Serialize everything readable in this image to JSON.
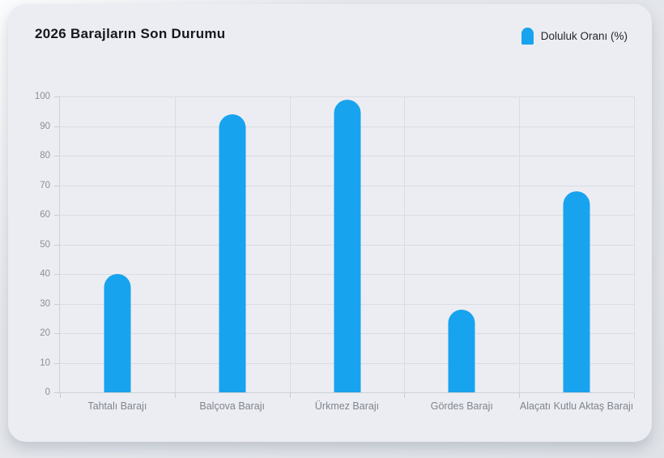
{
  "page": {
    "title": "2026 Barajların Son Durumu"
  },
  "legend": {
    "label": "Doluluk Oranı (%)",
    "color": "#18a3ee"
  },
  "chart_data": {
    "type": "bar",
    "title": "2026 Barajların Son Durumu",
    "categories": [
      "Tahtalı Barajı",
      "Balçova Barajı",
      "Ürkmez Barajı",
      "Gördes Barajı",
      "Alaçatı Kutlu Aktaş Barajı"
    ],
    "series": [
      {
        "name": "Doluluk Oranı (%)",
        "values": [
          40,
          94,
          99,
          28,
          68
        ]
      }
    ],
    "xlabel": "",
    "ylabel": "",
    "ylim": [
      0,
      100
    ],
    "ytick_step": 10,
    "grid": true,
    "legend_position": "top-right",
    "bar_color": "#18a3ee",
    "background_color": "#ecedf2",
    "gridline_color": "#dadce1"
  }
}
